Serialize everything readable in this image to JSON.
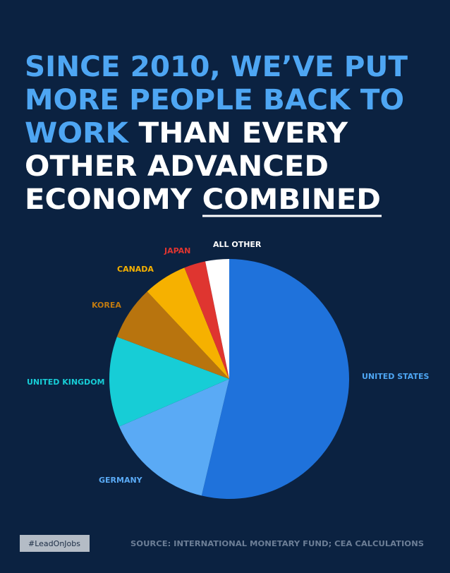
{
  "header": {
    "title": [
      "SINCE 2010, WE’VE PUT",
      "MORE PEOPLE BACK TO",
      "WORK",
      " THAN EVERY",
      "OTHER ADVANCED",
      "ECONOMY ",
      "COMBINED"
    ]
  },
  "chart_data": {
    "type": "pie",
    "categories": [
      "UNITED STATES",
      "GERMANY",
      "UNITED KINGDOM",
      "KOREA",
      "CANADA",
      "JAPAN",
      "ALL OTHER"
    ],
    "values": [
      53.7,
      14.8,
      12.2,
      7.3,
      5.9,
      2.9,
      3.2
    ],
    "colors": [
      "#1f72db",
      "#5aaaf5",
      "#17cdd6",
      "#b8740e",
      "#f6b100",
      "#df3530",
      "#ffffff"
    ]
  },
  "footer": {
    "hashtag": "#LeadOnJobs",
    "source": "SOURCE: INTERNATIONAL MONETARY FUND; CEA CALCULATIONS"
  }
}
